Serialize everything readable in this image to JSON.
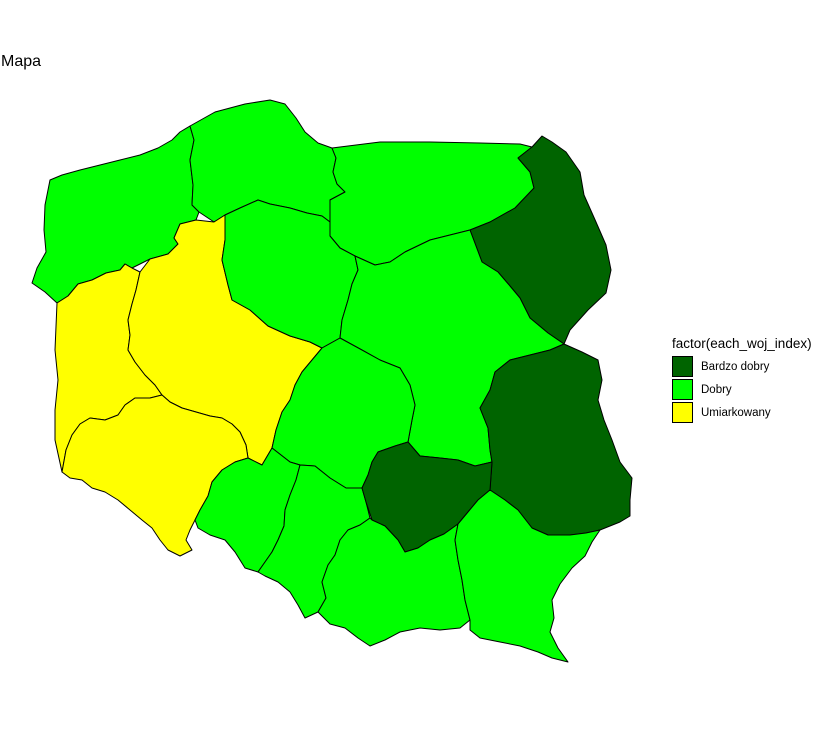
{
  "title": "Mapa",
  "legend": {
    "title": "factor(each_woj_index)",
    "entries": [
      {
        "key": "bardzo_dobry",
        "label": "Bardzo dobry",
        "color": "#006400"
      },
      {
        "key": "dobry",
        "label": "Dobry",
        "color": "#00ff00"
      },
      {
        "key": "umiarkowany",
        "label": "Umiarkowany",
        "color": "#ffff00"
      }
    ]
  },
  "regions": [
    {
      "name": "zachodniopomorskie",
      "category": "dobry"
    },
    {
      "name": "pomorskie",
      "category": "dobry"
    },
    {
      "name": "warminsko-mazurskie",
      "category": "dobry"
    },
    {
      "name": "podlaskie",
      "category": "bardzo_dobry"
    },
    {
      "name": "lubuskie",
      "category": "umiarkowany"
    },
    {
      "name": "wielkopolskie",
      "category": "umiarkowany"
    },
    {
      "name": "kujawsko-pomorskie",
      "category": "dobry"
    },
    {
      "name": "mazowieckie",
      "category": "dobry"
    },
    {
      "name": "lodzkie",
      "category": "dobry"
    },
    {
      "name": "lubelskie",
      "category": "bardzo_dobry"
    },
    {
      "name": "dolnoslaskie",
      "category": "umiarkowany"
    },
    {
      "name": "opolskie",
      "category": "dobry"
    },
    {
      "name": "slaskie",
      "category": "dobry"
    },
    {
      "name": "swietokrzyskie",
      "category": "bardzo_dobry"
    },
    {
      "name": "malopolskie",
      "category": "dobry"
    },
    {
      "name": "podkarpackie",
      "category": "dobry"
    }
  ]
}
